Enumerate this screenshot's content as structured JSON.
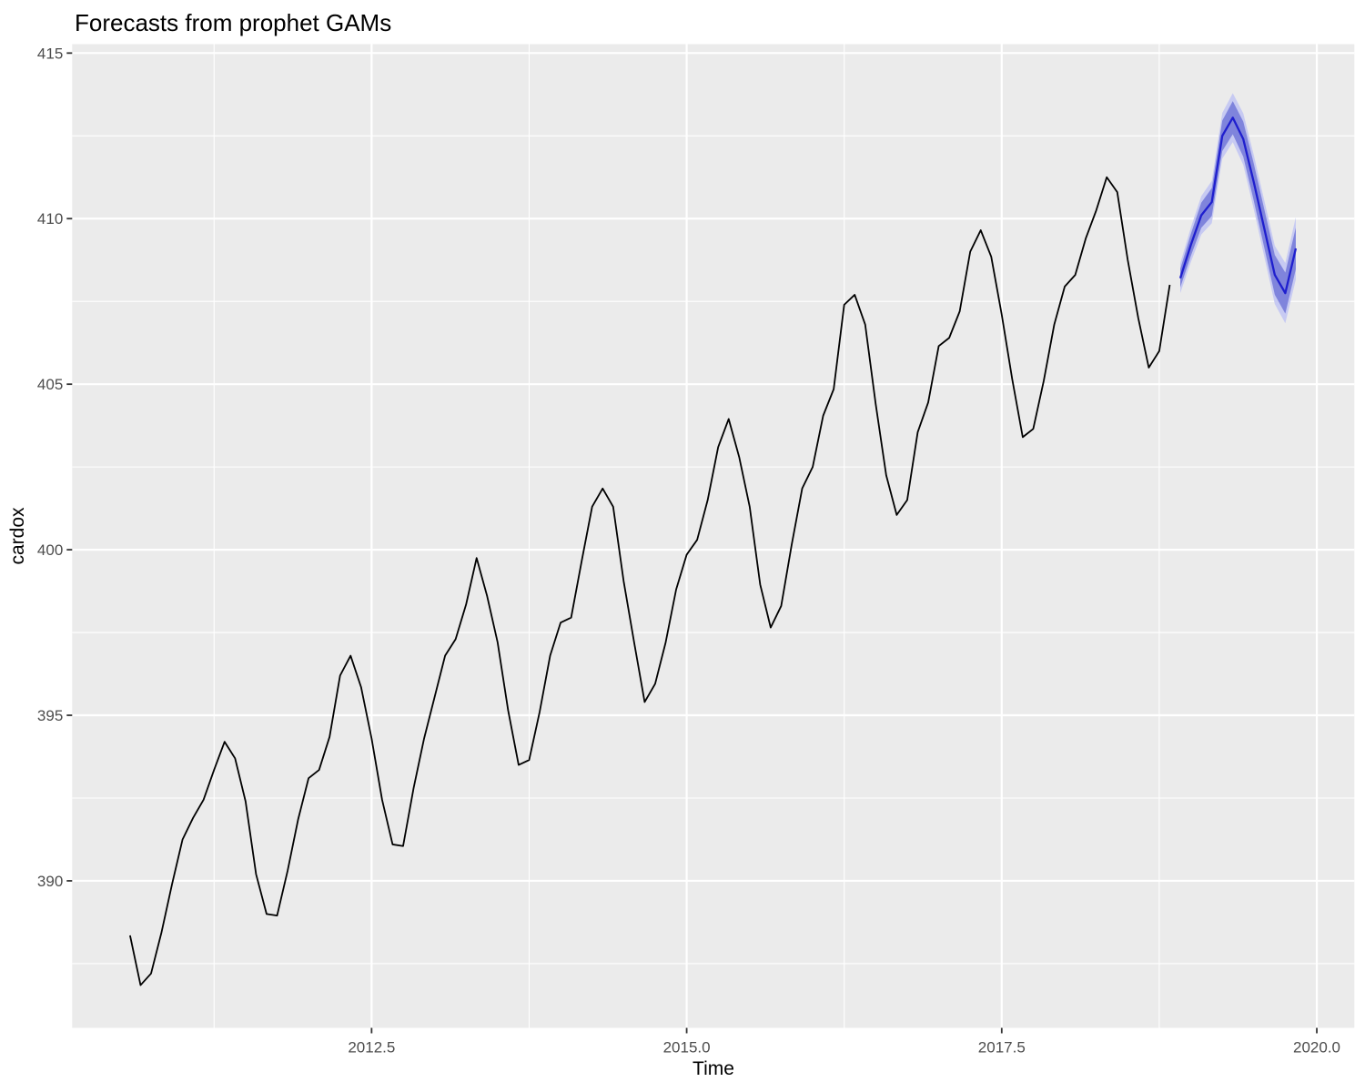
{
  "title": "Forecasts from prophet GAMs",
  "axes": {
    "x": {
      "label": "Time",
      "range": [
        2010.124,
        2020.298
      ],
      "major_ticks": [
        2012.5,
        2015.0,
        2017.5,
        2020.0
      ],
      "major_tick_labels": [
        "2012.5",
        "2015.0",
        "2017.5",
        "2020.0"
      ],
      "minor_ticks": [
        2011.25,
        2013.75,
        2016.25,
        2018.75
      ]
    },
    "y": {
      "label": "cardox",
      "range": [
        385.56,
        415.27
      ],
      "major_ticks": [
        390,
        395,
        400,
        405,
        410,
        415
      ],
      "major_tick_labels": [
        "390",
        "395",
        "400",
        "405",
        "410",
        "415"
      ],
      "minor_ticks": [
        387.5,
        392.5,
        397.5,
        402.5,
        407.5,
        412.5
      ]
    }
  },
  "style": {
    "panel_bg": "#EBEBEB",
    "grid_color": "#FFFFFF",
    "tick_color": "#333333",
    "tick_label_color": "#4D4D4D",
    "observed_color": "#000000",
    "forecast_color": "#1F1FCE",
    "band80_color": "#7F84DC",
    "band95_color": "#C7CAF2"
  },
  "chart_data": {
    "type": "line",
    "title": "Forecasts from prophet GAMs",
    "xlabel": "Time",
    "ylabel": "cardox",
    "grid": true,
    "legend_position": "none",
    "series": [
      {
        "name": "observed",
        "x_start": 2010.5833,
        "x_step": 0.0833333,
        "values": [
          388.35,
          386.85,
          387.2,
          388.45,
          389.9,
          391.25,
          391.9,
          392.45,
          393.35,
          394.2,
          393.7,
          392.4,
          390.2,
          389.0,
          388.95,
          390.3,
          391.85,
          393.1,
          393.35,
          394.35,
          396.2,
          396.8,
          395.85,
          394.3,
          392.45,
          391.1,
          391.05,
          392.8,
          394.3,
          395.55,
          396.8,
          397.3,
          398.35,
          399.75,
          398.6,
          397.2,
          395.15,
          393.5,
          393.65,
          395.1,
          396.8,
          397.8,
          397.95,
          399.65,
          401.3,
          401.85,
          401.3,
          399.05,
          397.2,
          395.4,
          395.95,
          397.2,
          398.8,
          399.85,
          400.3,
          401.5,
          403.1,
          403.95,
          402.8,
          401.3,
          398.95,
          397.65,
          398.3,
          400.15,
          401.85,
          402.5,
          404.05,
          404.85,
          407.4,
          407.7,
          406.8,
          404.4,
          402.25,
          401.05,
          401.5,
          403.55,
          404.45,
          406.15,
          406.4,
          407.2,
          409.0,
          409.65,
          408.85,
          407.1,
          405.15,
          403.4,
          403.65,
          405.1,
          406.8,
          407.95,
          408.3,
          409.4,
          410.25,
          411.25,
          410.8,
          408.75,
          407.0,
          405.5,
          406.0,
          408.0
        ]
      },
      {
        "name": "forecast",
        "x_start": 2018.9167,
        "x_step": 0.0833333,
        "values": [
          408.2,
          409.2,
          410.1,
          410.5,
          412.5,
          413.05,
          412.4,
          411.1,
          409.7,
          408.3,
          407.75,
          409.1
        ]
      }
    ],
    "bands": [
      {
        "name": "95% interval",
        "level": 95,
        "x_start": 2018.9167,
        "x_step": 0.0833333,
        "lower": [
          407.75,
          408.68,
          409.52,
          409.86,
          411.81,
          412.31,
          411.62,
          410.28,
          408.85,
          407.42,
          406.84,
          408.16
        ],
        "upper": [
          408.65,
          409.72,
          410.68,
          411.14,
          413.19,
          413.79,
          413.18,
          411.92,
          410.55,
          409.18,
          408.66,
          410.04
        ]
      },
      {
        "name": "80% interval",
        "level": 80,
        "x_start": 2018.9167,
        "x_step": 0.0833333,
        "lower": [
          407.92,
          408.87,
          409.72,
          410.08,
          412.04,
          412.55,
          411.87,
          410.54,
          409.12,
          407.7,
          407.13,
          408.47
        ],
        "upper": [
          408.48,
          409.53,
          410.48,
          410.92,
          412.96,
          413.55,
          412.93,
          411.66,
          410.28,
          408.9,
          408.37,
          409.73
        ]
      }
    ]
  }
}
